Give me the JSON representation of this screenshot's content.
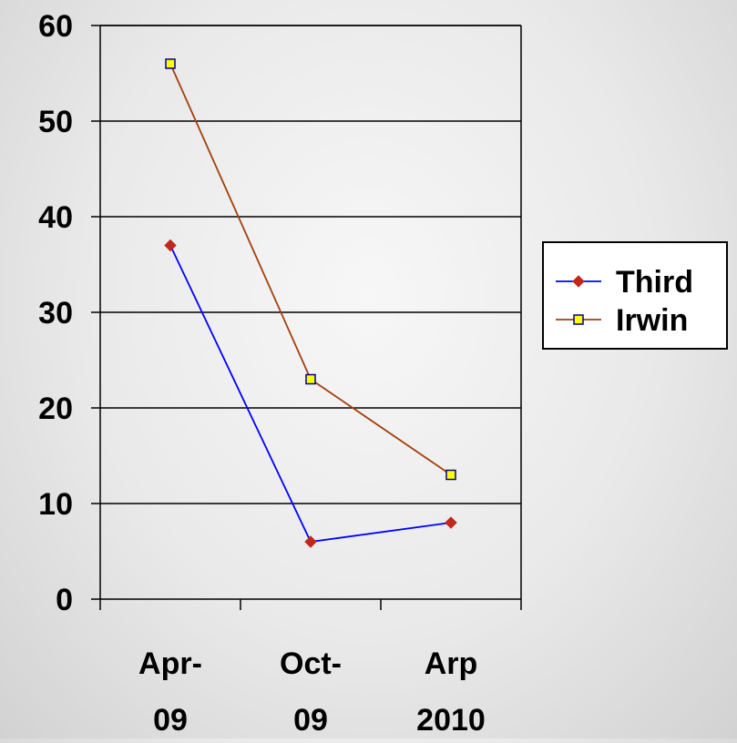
{
  "chart_data": {
    "type": "line",
    "categories": [
      [
        "Apr-",
        "09"
      ],
      [
        "Oct-",
        "09"
      ],
      [
        "Arp",
        "2010"
      ]
    ],
    "series": [
      {
        "name": "Third",
        "values": [
          37,
          6,
          8
        ],
        "color": "#0000ff",
        "marker": "diamond",
        "marker_fill": "#c0281c"
      },
      {
        "name": "Irwin",
        "values": [
          56,
          23,
          13
        ],
        "color": "#a0400c",
        "marker": "square",
        "marker_fill": "#ffff00"
      }
    ],
    "y_ticks": [
      "0",
      "10",
      "20",
      "30",
      "40",
      "50",
      "60"
    ],
    "ylim": [
      0,
      60
    ],
    "grid": true,
    "legend_position": "right"
  }
}
